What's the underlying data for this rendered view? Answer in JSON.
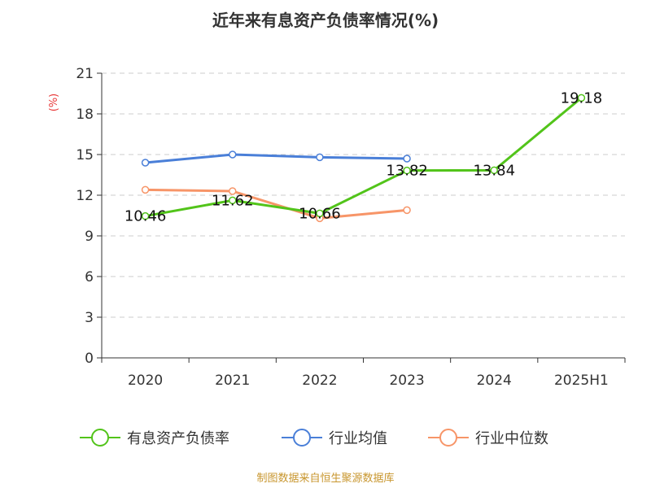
{
  "chart_data": {
    "type": "line",
    "title": "近年来有息资产负债率情况(%)",
    "ylabel": "(%)",
    "categories": [
      "2020",
      "2021",
      "2022",
      "2023",
      "2024",
      "2025H1"
    ],
    "ylim": [
      0,
      21
    ],
    "yticks": [
      0,
      3,
      6,
      9,
      12,
      15,
      18,
      21
    ],
    "grid": true,
    "legend_position": "bottom",
    "series": [
      {
        "name": "有息资产负债率",
        "color": "#52c41a",
        "values": [
          10.46,
          11.62,
          10.66,
          13.82,
          13.84,
          19.18
        ],
        "labels": [
          "10.46",
          "11.62",
          "10.66",
          "13.82",
          "13.84",
          "19.18"
        ]
      },
      {
        "name": "行业均值",
        "color": "#4a7fd8",
        "values": [
          14.4,
          15.0,
          14.8,
          14.7,
          null,
          null
        ]
      },
      {
        "name": "行业中位数",
        "color": "#f79568",
        "values": [
          12.4,
          12.3,
          10.3,
          10.9,
          null,
          null
        ]
      }
    ]
  },
  "source": "制图数据来自恒生聚源数据库"
}
